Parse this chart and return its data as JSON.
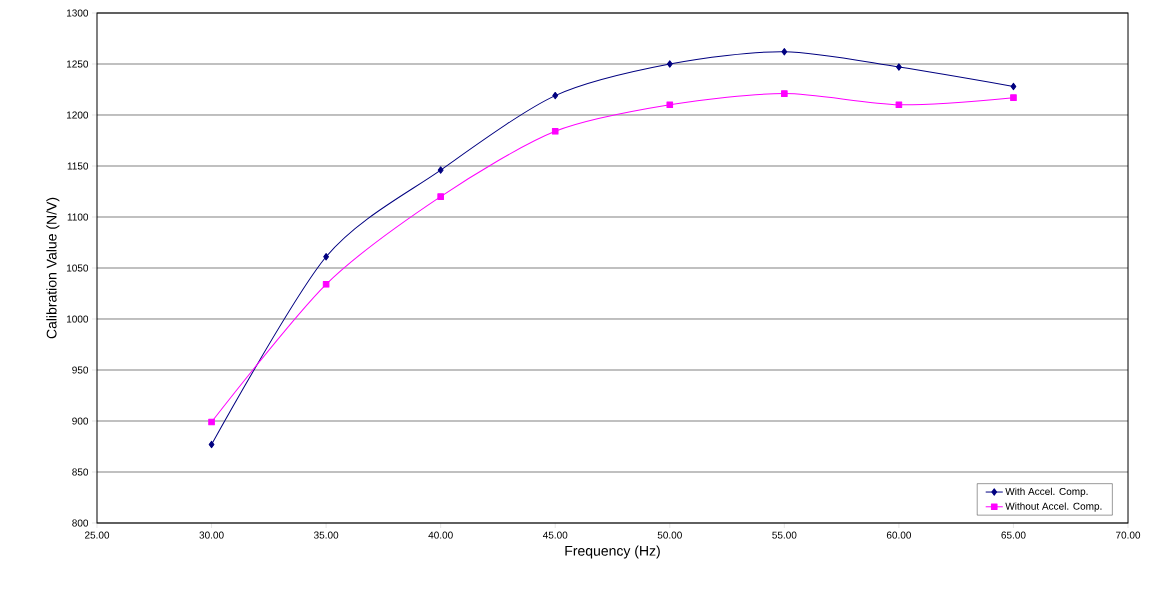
{
  "chart_data": {
    "type": "line",
    "xlabel": "Frequency (Hz)",
    "ylabel": "Calibration Value (N/V)",
    "x": [
      30,
      35,
      40,
      45,
      50,
      55,
      60,
      65
    ],
    "series": [
      {
        "name": "With Accel. Comp.",
        "color": "#000080",
        "marker": "diamond",
        "values": [
          877,
          1061,
          1146,
          1219,
          1250,
          1262,
          1247,
          1228
        ]
      },
      {
        "name": "Without Accel. Comp.",
        "color": "#ff00ff",
        "marker": "square",
        "values": [
          899,
          1034,
          1120,
          1184,
          1210,
          1221,
          1210,
          1217
        ]
      }
    ],
    "xlim": [
      25,
      70
    ],
    "xticks": [
      {
        "value": 25,
        "label": "25.00"
      },
      {
        "value": 30,
        "label": "30.00"
      },
      {
        "value": 35,
        "label": "35.00"
      },
      {
        "value": 40,
        "label": "40.00"
      },
      {
        "value": 45,
        "label": "45.00"
      },
      {
        "value": 50,
        "label": "50.00"
      },
      {
        "value": 55,
        "label": "55.00"
      },
      {
        "value": 60,
        "label": "60.00"
      },
      {
        "value": 65,
        "label": "65.00"
      },
      {
        "value": 70,
        "label": "70.00"
      }
    ],
    "ylim": [
      800,
      1300
    ],
    "yticks": [
      800,
      850,
      900,
      950,
      1000,
      1050,
      1100,
      1150,
      1200,
      1250,
      1300
    ],
    "grid": "y",
    "legend": "bottom right",
    "line_style": "solid"
  }
}
